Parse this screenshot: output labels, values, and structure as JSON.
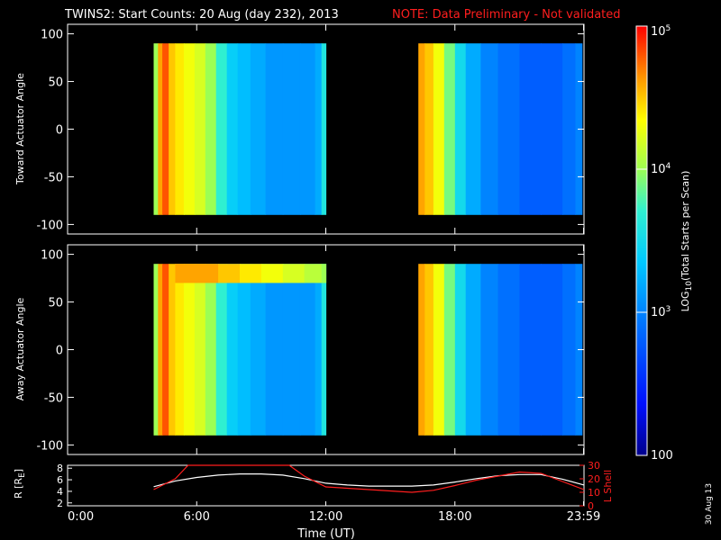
{
  "title": "TWINS2: Start Counts: 20 Aug (day 232), 2013",
  "note": "NOTE: Data Preliminary - Not validated",
  "date_stamp": "30 Aug 13",
  "chart_data": [
    {
      "type": "heatmap",
      "panel": "toward",
      "ylabel": "Toward Actuator Angle",
      "ylim": [
        -110,
        110
      ],
      "yticks": [
        "100",
        "50",
        "0",
        "-50",
        "-100"
      ],
      "ytick_values": [
        100,
        50,
        0,
        -50,
        -100
      ],
      "xlim_hours": [
        0,
        24
      ],
      "angle_range": [
        -90,
        90
      ],
      "data_intervals_hours": [
        [
          4.0,
          12.0
        ],
        [
          16.3,
          23.9
        ]
      ],
      "rows": [
        {
          "angle_range": [
            -90,
            90
          ],
          "log_counts": [
            [
              4.0,
              4.0
            ],
            [
              4.2,
              4.6
            ],
            [
              4.4,
              4.8
            ],
            [
              4.7,
              4.5
            ],
            [
              5.0,
              4.4
            ],
            [
              5.4,
              4.3
            ],
            [
              5.9,
              4.2
            ],
            [
              6.4,
              4.0
            ],
            [
              6.9,
              3.7
            ],
            [
              7.4,
              3.4
            ],
            [
              7.9,
              3.3
            ],
            [
              8.5,
              3.2
            ],
            [
              9.2,
              3.1
            ],
            [
              10.0,
              3.1
            ],
            [
              10.8,
              3.1
            ],
            [
              11.5,
              3.2
            ],
            [
              11.8,
              3.6
            ],
            [
              16.3,
              4.6
            ],
            [
              16.6,
              4.5
            ],
            [
              17.0,
              4.3
            ],
            [
              17.5,
              3.9
            ],
            [
              18.0,
              3.5
            ],
            [
              18.5,
              3.2
            ],
            [
              19.2,
              3.0
            ],
            [
              20.0,
              2.9
            ],
            [
              21.0,
              2.8
            ],
            [
              22.0,
              2.8
            ],
            [
              23.0,
              2.9
            ],
            [
              23.6,
              3.0
            ]
          ]
        }
      ]
    },
    {
      "type": "heatmap",
      "panel": "away",
      "ylabel": "Away Actuator Angle",
      "ylim": [
        -110,
        110
      ],
      "yticks": [
        "100",
        "50",
        "0",
        "-50",
        "-100"
      ],
      "ytick_values": [
        100,
        50,
        0,
        -50,
        -100
      ],
      "xlim_hours": [
        0,
        24
      ],
      "angle_range": [
        -90,
        90
      ],
      "data_intervals_hours": [
        [
          4.0,
          12.0
        ],
        [
          16.3,
          23.9
        ]
      ],
      "rows": [
        {
          "angle_range": [
            -90,
            90
          ],
          "log_counts": [
            [
              4.0,
              4.0
            ],
            [
              4.2,
              4.6
            ],
            [
              4.4,
              4.8
            ],
            [
              4.7,
              4.5
            ],
            [
              5.0,
              4.4
            ],
            [
              5.4,
              4.3
            ],
            [
              5.9,
              4.2
            ],
            [
              6.4,
              4.0
            ],
            [
              6.9,
              3.7
            ],
            [
              7.4,
              3.4
            ],
            [
              7.9,
              3.3
            ],
            [
              8.5,
              3.2
            ],
            [
              9.2,
              3.1
            ],
            [
              10.0,
              3.1
            ],
            [
              10.8,
              3.1
            ],
            [
              11.5,
              3.2
            ],
            [
              11.8,
              3.6
            ],
            [
              16.3,
              4.6
            ],
            [
              16.6,
              4.5
            ],
            [
              17.0,
              4.3
            ],
            [
              17.5,
              3.9
            ],
            [
              18.0,
              3.5
            ],
            [
              18.5,
              3.2
            ],
            [
              19.2,
              3.0
            ],
            [
              20.0,
              2.9
            ],
            [
              21.0,
              2.8
            ],
            [
              22.0,
              2.8
            ],
            [
              23.0,
              2.9
            ],
            [
              23.6,
              3.0
            ]
          ]
        },
        {
          "angle_range": [
            70,
            90
          ],
          "log_counts": [
            [
              5.0,
              4.6
            ],
            [
              6.0,
              4.6
            ],
            [
              7.0,
              4.5
            ],
            [
              8.0,
              4.4
            ],
            [
              9.0,
              4.3
            ],
            [
              10.0,
              4.2
            ],
            [
              11.0,
              4.1
            ],
            [
              11.8,
              4.0
            ]
          ]
        }
      ]
    },
    {
      "type": "line",
      "panel": "orbit",
      "ylabel": "R [R",
      "ylabel_sub": "E",
      "ylabel_end": "]",
      "ylim": [
        1.5,
        8.5
      ],
      "yticks": [
        "8",
        "6",
        "4",
        "2"
      ],
      "ytick_values": [
        8,
        6,
        4,
        2
      ],
      "y2label": "L Shell",
      "y2lim": [
        0,
        30
      ],
      "y2ticks": [
        "30",
        "20",
        "10",
        "0"
      ],
      "y2tick_values": [
        30,
        20,
        10,
        0
      ],
      "xlabel": "Time (UT)",
      "xlim_hours": [
        0,
        24
      ],
      "xticks": [
        "0:00",
        "6:00",
        "12:00",
        "18:00",
        "23:59"
      ],
      "xtick_values": [
        0,
        6,
        12,
        18,
        23.98
      ],
      "series": [
        {
          "axis": "left",
          "color": "#ffffff",
          "x": [
            4.0,
            5.0,
            6.0,
            7.0,
            8.0,
            9.0,
            10.0,
            11.0,
            12.0,
            13.0,
            14.0,
            15.0,
            16.0,
            17.0,
            18.0,
            19.0,
            20.0,
            21.0,
            22.0,
            23.0,
            24.0
          ],
          "y": [
            4.8,
            5.8,
            6.4,
            6.8,
            7.0,
            7.0,
            6.8,
            6.2,
            5.4,
            5.1,
            4.9,
            4.9,
            4.9,
            5.1,
            5.6,
            6.2,
            6.7,
            6.9,
            6.9,
            6.1,
            5.1
          ]
        },
        {
          "axis": "right",
          "color": "#ff1e1e",
          "x": [
            4.0,
            5.0,
            5.6,
            10.3,
            11.0,
            12.0,
            13.0,
            14.0,
            15.0,
            16.0,
            17.0,
            18.0,
            19.0,
            20.0,
            21.0,
            22.0,
            23.0,
            24.0
          ],
          "y": [
            12.0,
            20.0,
            30.0,
            30.0,
            22.0,
            14.0,
            13.0,
            12.0,
            11.0,
            10.0,
            11.5,
            15.0,
            19.0,
            22.0,
            25.0,
            24.0,
            18.0,
            12.0
          ]
        }
      ]
    }
  ],
  "colorbar": {
    "label_prefix": "LOG",
    "label_sub": "10",
    "label_suffix": "(Total Starts per Scan)",
    "scale": "log",
    "range": [
      100,
      100000
    ],
    "ticks": [
      {
        "value": 100000,
        "base": "10",
        "exp": "5"
      },
      {
        "value": 10000,
        "base": "10",
        "exp": "4"
      },
      {
        "value": 1000,
        "base": "10",
        "exp": "3"
      },
      {
        "value": 100,
        "base": "100",
        "exp": ""
      }
    ]
  }
}
